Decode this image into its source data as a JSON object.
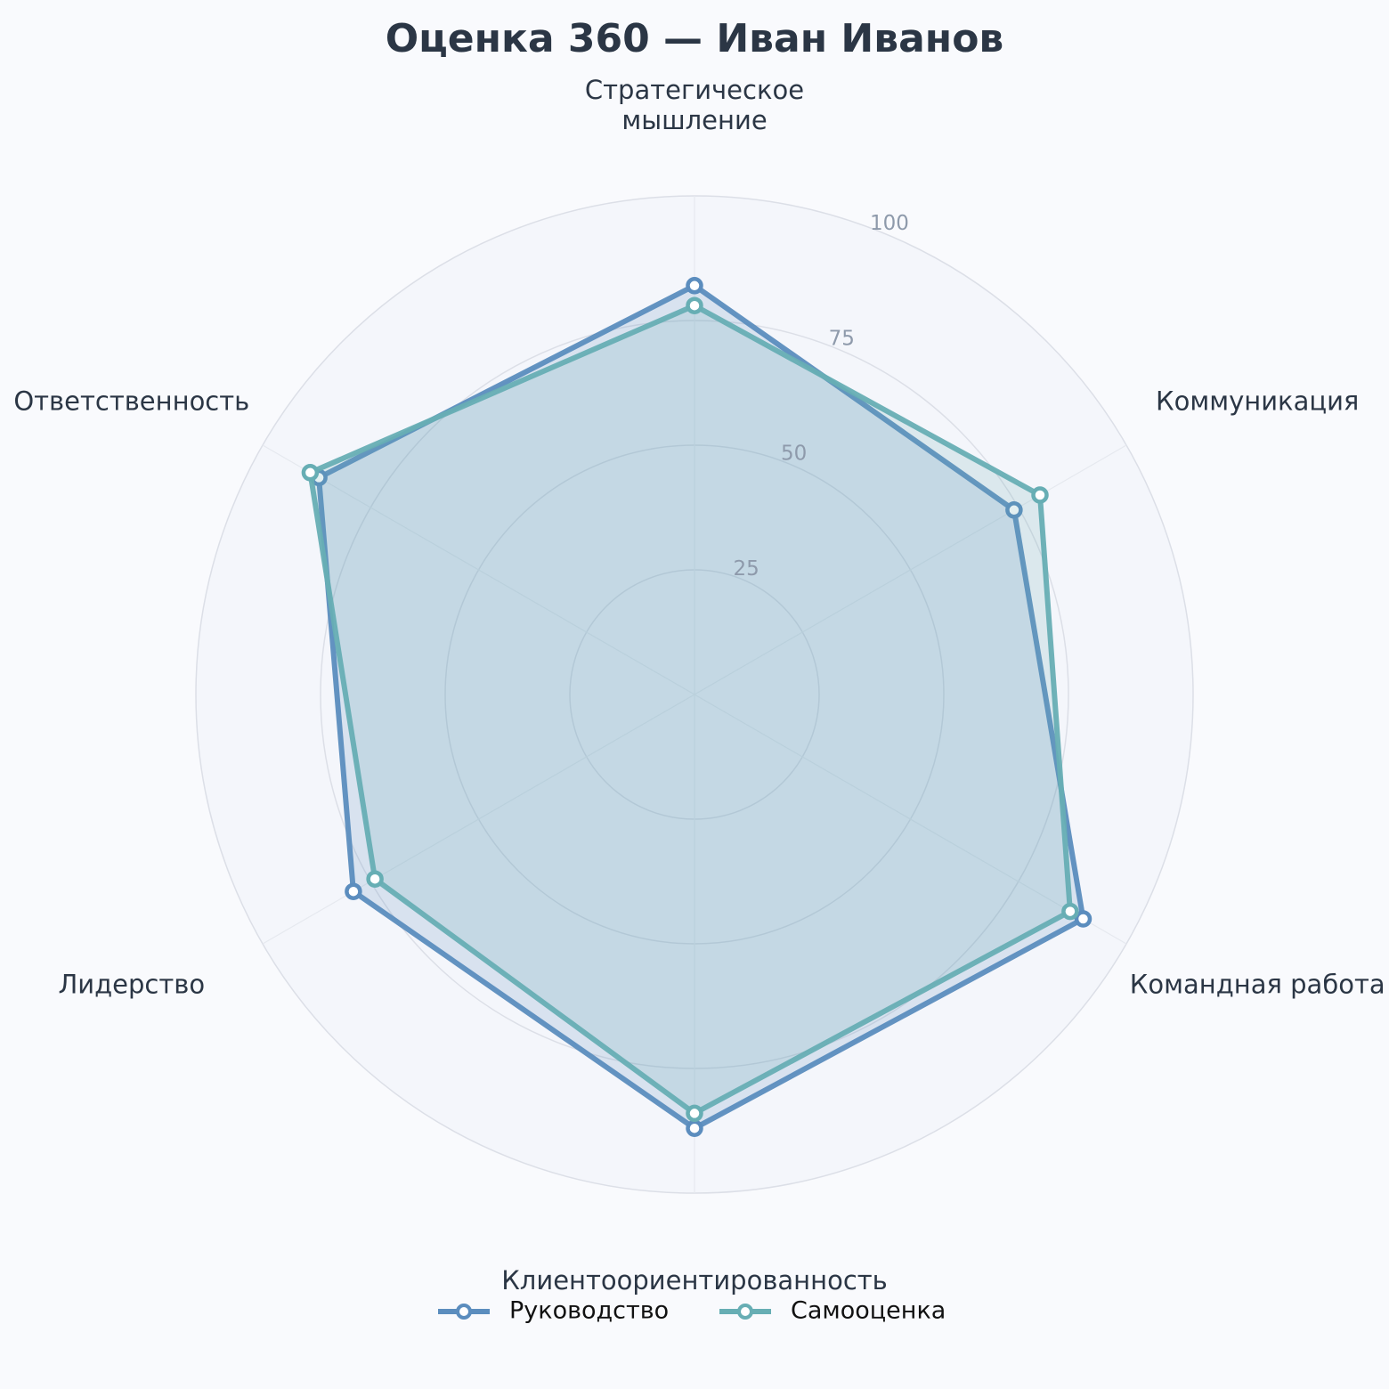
{
  "chart_data": {
    "type": "radar",
    "title": "Оценка 360 — Иван Иванов",
    "axes": [
      [
        "Стратегическое",
        "мышление"
      ],
      [
        "Коммуникация"
      ],
      [
        "Командная работа"
      ],
      [
        "Клиентоориентированность"
      ],
      [
        "Лидерство"
      ],
      [
        "Ответственность"
      ]
    ],
    "rlim": [
      0,
      100
    ],
    "rticks": [
      25,
      50,
      75,
      100
    ],
    "grid": true,
    "legend_position": "bottom-center",
    "series": [
      {
        "name": "Руководство",
        "color": "#5b8dbe",
        "values": [
          82,
          74,
          90,
          87,
          79,
          87
        ]
      },
      {
        "name": "Самооценка",
        "color": "#67aeb4",
        "values": [
          78,
          80,
          87,
          84,
          74,
          89
        ]
      }
    ]
  }
}
